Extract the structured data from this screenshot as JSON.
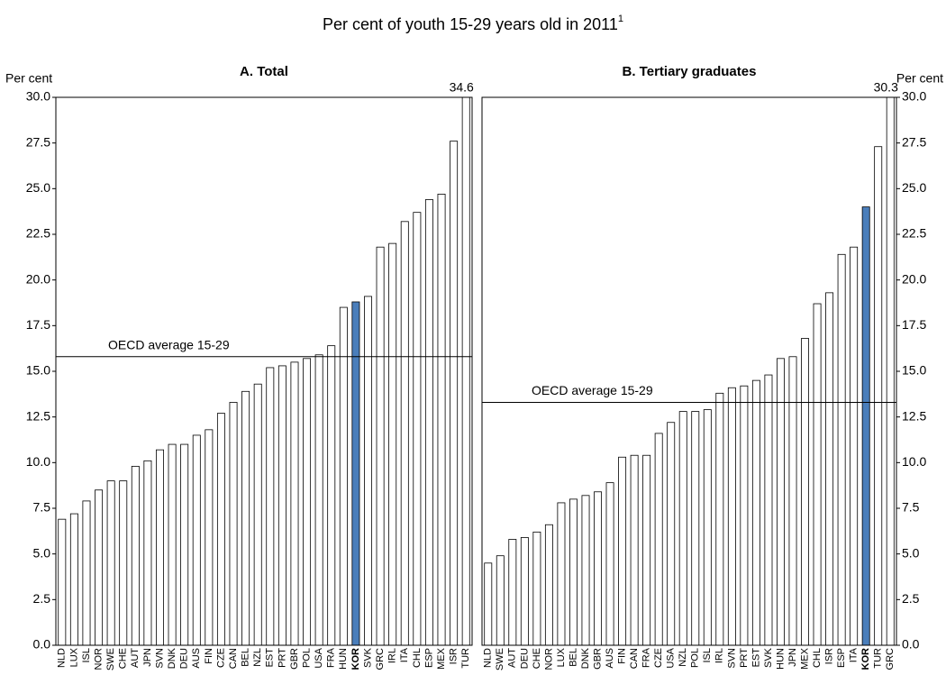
{
  "title": "Per cent of youth 15-29 years old in 2011",
  "title_note": "1",
  "chart_data": [
    {
      "type": "bar",
      "title": "A. Total",
      "y_label": "Per cent",
      "yaxis_side": "left",
      "categories": [
        "NLD",
        "LUX",
        "ISL",
        "NOR",
        "SWE",
        "CHE",
        "AUT",
        "JPN",
        "SVN",
        "DNK",
        "DEU",
        "AUS",
        "FIN",
        "CZE",
        "CAN",
        "BEL",
        "NZL",
        "EST",
        "PRT",
        "GBR",
        "POL",
        "USA",
        "FRA",
        "HUN",
        "KOR",
        "SVK",
        "GRC",
        "IRL",
        "ITA",
        "CHL",
        "ESP",
        "MEX",
        "ISR",
        "TUR"
      ],
      "values": [
        6.9,
        7.2,
        7.9,
        8.5,
        9.0,
        9.0,
        9.8,
        10.1,
        10.7,
        11.0,
        11.0,
        11.5,
        11.8,
        12.7,
        13.3,
        13.9,
        14.3,
        15.2,
        15.3,
        15.5,
        15.7,
        15.9,
        16.4,
        18.5,
        18.8,
        19.1,
        21.8,
        22.0,
        23.2,
        23.7,
        24.4,
        24.7,
        27.6,
        34.6
      ],
      "value_labels": [
        null,
        null,
        null,
        null,
        null,
        null,
        null,
        null,
        null,
        null,
        null,
        null,
        null,
        null,
        null,
        null,
        null,
        null,
        null,
        null,
        null,
        null,
        null,
        null,
        null,
        null,
        null,
        null,
        null,
        null,
        null,
        null,
        null,
        "34.6"
      ],
      "color": "#ffffff",
      "highlight": "KOR",
      "highlight_color": "#4a7ebb",
      "reference_line": {
        "value": 15.8,
        "label": "OECD average 15-29"
      },
      "ylim": [
        0,
        30
      ],
      "yticks": [
        {
          "value": 0,
          "label": "0.0"
        },
        {
          "value": 2.5,
          "label": "2.5"
        },
        {
          "value": 5,
          "label": "5.0"
        },
        {
          "value": 7.5,
          "label": "7.5"
        },
        {
          "value": 10,
          "label": "10.0"
        },
        {
          "value": 12.5,
          "label": "12.5"
        },
        {
          "value": 15,
          "label": "15.0"
        },
        {
          "value": 17.5,
          "label": "17.5"
        },
        {
          "value": 20,
          "label": "20.0"
        },
        {
          "value": 22.5,
          "label": "22.5"
        },
        {
          "value": 25,
          "label": "25.0"
        },
        {
          "value": 27.5,
          "label": "27.5"
        },
        {
          "value": 30,
          "label": "30.0"
        }
      ],
      "grid": false
    },
    {
      "type": "bar",
      "title": "B. Tertiary graduates",
      "y_label": "Per cent",
      "yaxis_side": "right",
      "categories": [
        "NLD",
        "SWE",
        "AUT",
        "DEU",
        "CHE",
        "NOR",
        "LUX",
        "BEL",
        "DNK",
        "GBR",
        "AUS",
        "FIN",
        "CAN",
        "FRA",
        "CZE",
        "USA",
        "NZL",
        "POL",
        "ISL",
        "IRL",
        "SVN",
        "PRT",
        "EST",
        "SVK",
        "HUN",
        "JPN",
        "MEX",
        "CHL",
        "ISR",
        "ESP",
        "ITA",
        "KOR",
        "TUR",
        "GRC"
      ],
      "values": [
        4.5,
        4.9,
        5.8,
        5.9,
        6.2,
        6.6,
        7.8,
        8.0,
        8.2,
        8.4,
        8.9,
        10.3,
        10.4,
        10.4,
        11.6,
        12.2,
        12.8,
        12.8,
        12.9,
        13.8,
        14.1,
        14.2,
        14.5,
        14.8,
        15.7,
        15.8,
        16.8,
        18.7,
        19.3,
        21.4,
        21.8,
        24.0,
        27.3,
        30.3
      ],
      "value_labels": [
        null,
        null,
        null,
        null,
        null,
        null,
        null,
        null,
        null,
        null,
        null,
        null,
        null,
        null,
        null,
        null,
        null,
        null,
        null,
        null,
        null,
        null,
        null,
        null,
        null,
        null,
        null,
        null,
        null,
        null,
        null,
        null,
        null,
        "30.3"
      ],
      "color": "#ffffff",
      "highlight": "KOR",
      "highlight_color": "#4a7ebb",
      "reference_line": {
        "value": 13.3,
        "label": "OECD average 15-29"
      },
      "ylim": [
        0,
        30
      ],
      "yticks": [
        {
          "value": 0,
          "label": "0.0"
        },
        {
          "value": 2.5,
          "label": "2.5"
        },
        {
          "value": 5,
          "label": "5.0"
        },
        {
          "value": 7.5,
          "label": "7.5"
        },
        {
          "value": 10,
          "label": "10.0"
        },
        {
          "value": 12.5,
          "label": "12.5"
        },
        {
          "value": 15,
          "label": "15.0"
        },
        {
          "value": 17.5,
          "label": "17.5"
        },
        {
          "value": 20,
          "label": "20.0"
        },
        {
          "value": 22.5,
          "label": "22.5"
        },
        {
          "value": 25,
          "label": "25.0"
        },
        {
          "value": 27.5,
          "label": "27.5"
        },
        {
          "value": 30,
          "label": "30.0"
        }
      ],
      "grid": false
    }
  ]
}
